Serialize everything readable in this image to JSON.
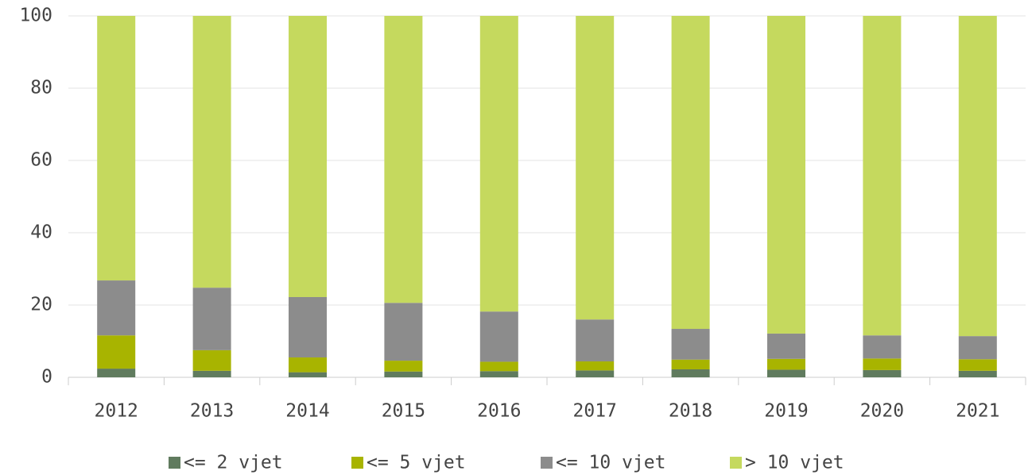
{
  "chart_data": {
    "type": "stacked_bar",
    "categories": [
      "2012",
      "2013",
      "2014",
      "2015",
      "2016",
      "2017",
      "2018",
      "2019",
      "2020",
      "2021"
    ],
    "series": [
      {
        "name": "<= 2 vjet",
        "color": "#607b5e",
        "values": [
          2.4,
          1.8,
          1.4,
          1.6,
          1.7,
          1.9,
          2.2,
          2.1,
          2.0,
          1.8
        ]
      },
      {
        "name": "<= 5 vjet",
        "color": "#a8b400",
        "values": [
          9.2,
          5.7,
          4.1,
          3.0,
          2.6,
          2.5,
          2.7,
          3.0,
          3.2,
          3.2
        ]
      },
      {
        "name": "<= 10 vjet",
        "color": "#8c8c8c",
        "values": [
          15.2,
          17.3,
          16.7,
          16.0,
          13.9,
          11.6,
          8.5,
          7.0,
          6.4,
          6.4
        ]
      },
      {
        "name": "> 10 vjet",
        "color": "#c5d95e",
        "values": [
          73.2,
          75.2,
          77.8,
          79.4,
          81.8,
          84.0,
          86.6,
          87.9,
          88.4,
          88.6
        ]
      }
    ],
    "ylim": [
      0,
      100
    ],
    "yticks": [
      0,
      20,
      40,
      60,
      80,
      100
    ],
    "grid": true,
    "legend": "bottom"
  }
}
